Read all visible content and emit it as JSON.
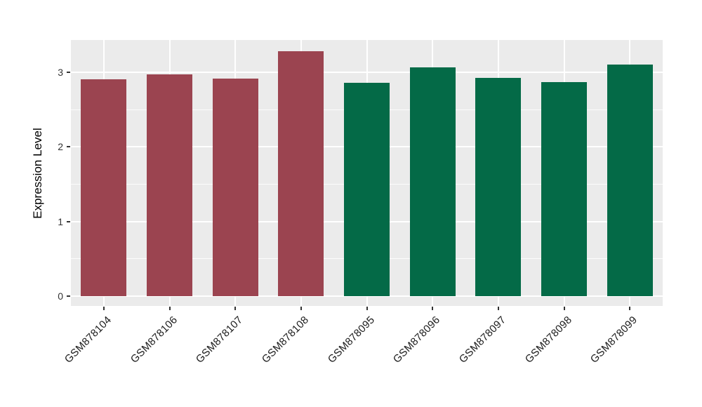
{
  "chart_data": {
    "type": "bar",
    "title": "",
    "xlabel": "",
    "ylabel": "Expression Level",
    "categories": [
      "GSM878104",
      "GSM878106",
      "GSM878107",
      "GSM878108",
      "GSM878095",
      "GSM878096",
      "GSM878097",
      "GSM878098",
      "GSM878099"
    ],
    "values": [
      2.9,
      2.97,
      2.91,
      3.28,
      2.86,
      3.06,
      2.92,
      2.87,
      3.1
    ],
    "groups": [
      "group1",
      "group1",
      "group1",
      "group1",
      "group2",
      "group2",
      "group2",
      "group2",
      "group2"
    ],
    "group_colors": {
      "group1": "#9B4450",
      "group2": "#046A47"
    },
    "ytick_labels": [
      "0",
      "1",
      "2",
      "3"
    ],
    "yticks": [
      0,
      1,
      2,
      3
    ],
    "yticks_minor": [
      0.5,
      1.5,
      2.5
    ],
    "ylim": [
      -0.13,
      3.43
    ],
    "bar_baseline": 0,
    "grid": true,
    "legend_position": "none",
    "colors": {
      "panel_background": "#EBEBEB",
      "figure_background": "#FFFFFF",
      "grid_color": "#FFFFFF",
      "tick_mark_color": "#333333",
      "y_tick_label_color": "#333333",
      "x_tick_label_color": "#1A1A1A",
      "axis_title_color": "#000000"
    }
  }
}
